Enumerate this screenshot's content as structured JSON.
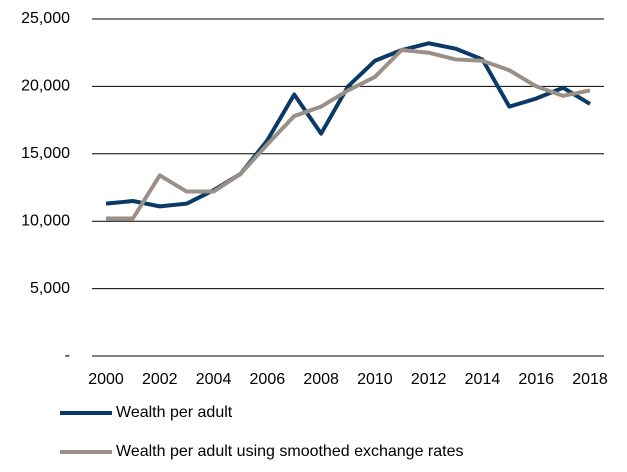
{
  "chart_data": {
    "type": "line",
    "x": [
      2000,
      2001,
      2002,
      2003,
      2004,
      2005,
      2006,
      2007,
      2008,
      2009,
      2010,
      2011,
      2012,
      2013,
      2014,
      2015,
      2016,
      2017,
      2018
    ],
    "series": [
      {
        "name": "Wealth per adult",
        "color": "#0b3a66",
        "values": [
          11300,
          11500,
          11100,
          11300,
          12300,
          13500,
          16000,
          19400,
          16500,
          20000,
          21900,
          22700,
          23200,
          22800,
          22000,
          18500,
          19100,
          19900,
          18700
        ]
      },
      {
        "name": "Wealth per adult using smoothed exchange rates",
        "color": "#9b9088",
        "values": [
          10200,
          10200,
          13400,
          12200,
          12200,
          13500,
          15700,
          17800,
          18500,
          19700,
          20700,
          22700,
          22500,
          22000,
          21900,
          21200,
          20000,
          19300,
          19700
        ]
      }
    ],
    "xlim": [
      2000,
      2018
    ],
    "xticks": [
      2000,
      2002,
      2004,
      2006,
      2008,
      2010,
      2012,
      2014,
      2016,
      2018
    ],
    "ylim": [
      0,
      25000
    ],
    "yticks": [
      {
        "value": 0,
        "label": "-"
      },
      {
        "value": 5000,
        "label": "5,000"
      },
      {
        "value": 10000,
        "label": "10,000"
      },
      {
        "value": 15000,
        "label": "15,000"
      },
      {
        "value": 20000,
        "label": "20,000"
      },
      {
        "value": 25000,
        "label": "25,000"
      }
    ],
    "grid": true
  }
}
